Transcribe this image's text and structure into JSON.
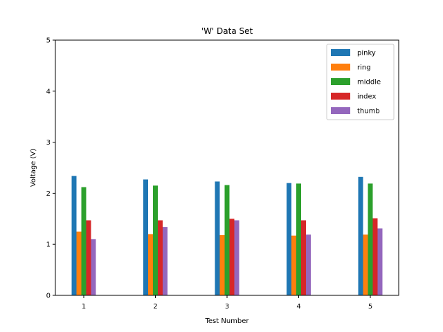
{
  "chart_data": {
    "type": "bar",
    "title": "'W' Data Set",
    "xlabel": "Test Number",
    "ylabel": "Voltage (V)",
    "categories": [
      "1",
      "2",
      "3",
      "4",
      "5"
    ],
    "ylim": [
      0,
      5
    ],
    "yticks": [
      "0",
      "1",
      "2",
      "3",
      "4",
      "5"
    ],
    "grid": false,
    "legend": "top-right",
    "series": [
      {
        "name": "pinky",
        "color": "#1f77b4",
        "values": [
          2.34,
          2.27,
          2.23,
          2.2,
          2.32
        ]
      },
      {
        "name": "ring",
        "color": "#ff7f0e",
        "values": [
          1.25,
          1.2,
          1.18,
          1.17,
          1.19
        ]
      },
      {
        "name": "middle",
        "color": "#2ca02c",
        "values": [
          2.12,
          2.15,
          2.16,
          2.19,
          2.19
        ]
      },
      {
        "name": "index",
        "color": "#d62728",
        "values": [
          1.47,
          1.47,
          1.5,
          1.47,
          1.51
        ]
      },
      {
        "name": "thumb",
        "color": "#9467bd",
        "values": [
          1.1,
          1.34,
          1.47,
          1.19,
          1.31
        ]
      }
    ]
  }
}
